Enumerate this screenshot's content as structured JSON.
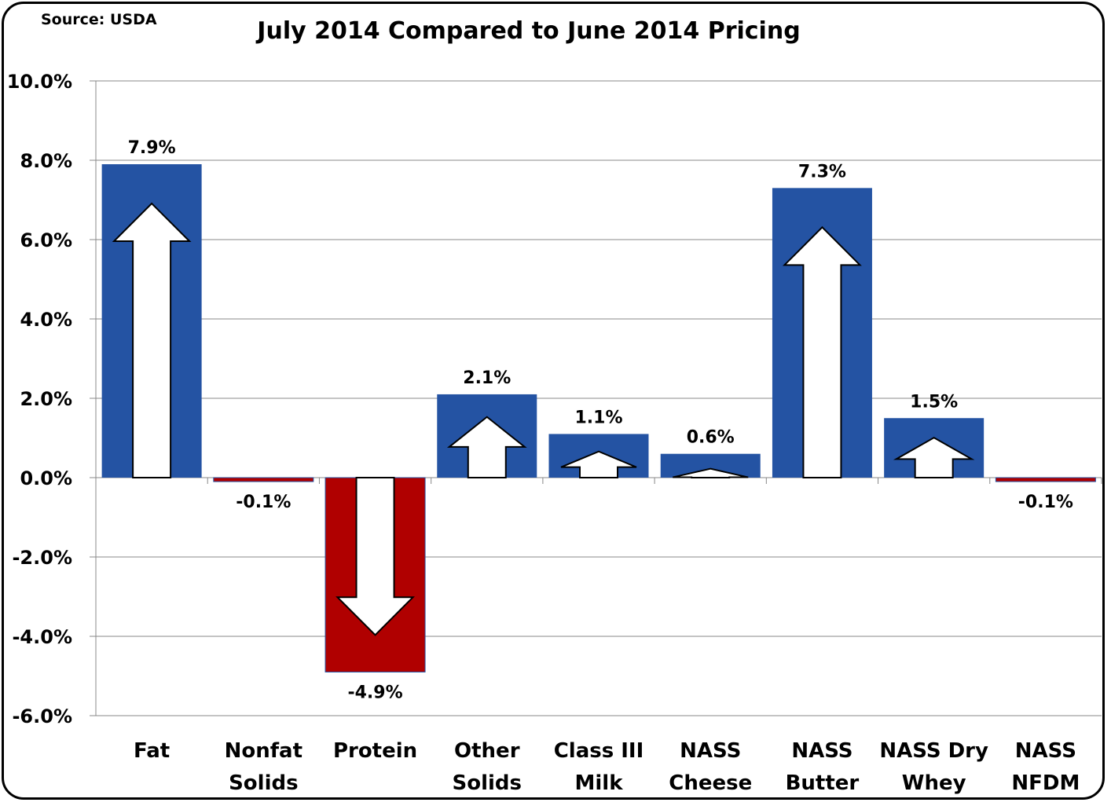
{
  "chart_data": {
    "type": "bar",
    "title": "July 2014 Compared to June 2014 Pricing",
    "source": "Source: USDA",
    "categories": [
      [
        "Fat"
      ],
      [
        "Nonfat",
        "Solids"
      ],
      [
        "Protein"
      ],
      [
        "Other",
        "Solids"
      ],
      [
        "Class III",
        "Milk"
      ],
      [
        "NASS",
        "Cheese"
      ],
      [
        "NASS",
        "Butter"
      ],
      [
        "NASS Dry",
        "Whey"
      ],
      [
        "NASS",
        "NFDM"
      ]
    ],
    "values": [
      7.9,
      -0.1,
      -4.9,
      2.1,
      1.1,
      0.6,
      7.3,
      1.5,
      -0.1
    ],
    "data_labels": [
      "7.9%",
      "-0.1%",
      "-4.9%",
      "2.1%",
      "1.1%",
      "0.6%",
      "7.3%",
      "1.5%",
      "-0.1%"
    ],
    "yticks": [
      "10.0%",
      "8.0%",
      "6.0%",
      "4.0%",
      "2.0%",
      "0.0%",
      "-2.0%",
      "-4.0%",
      "-6.0%"
    ],
    "ylim": [
      -6,
      10
    ],
    "grid": true,
    "colors": {
      "positive": "#2453A3",
      "negative": "#B00000",
      "arrow": "#FFFFFF"
    }
  }
}
